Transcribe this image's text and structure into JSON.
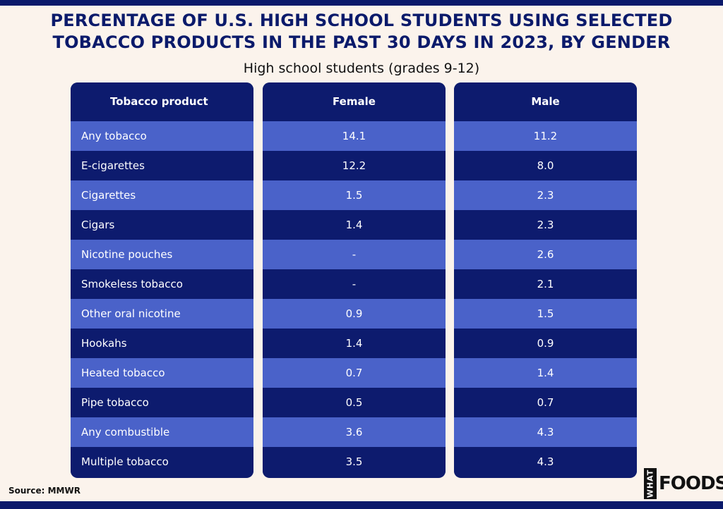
{
  "header": {
    "title_line1": "PERCENTAGE OF U.S. HIGH SCHOOL STUDENTS USING SELECTED",
    "title_line2": "TOBACCO PRODUCTS IN THE PAST 30 DAYS IN 2023, BY GENDER",
    "subtitle": "High school students (grades 9-12)"
  },
  "footer": {
    "source": "Source: MMWR",
    "logo_mark": "WHAT",
    "logo_text": "FOODS"
  },
  "colors": {
    "background": "#FBF3EC",
    "dark_navy": "#0D1B6E",
    "row_blue": "#4A62C9",
    "title": "#0B1A6B"
  },
  "chart_data": {
    "type": "table",
    "columns": [
      "Tobacco product",
      "Female",
      "Male"
    ],
    "rows": [
      {
        "product": "Any tobacco",
        "female": "14.1",
        "male": "11.2"
      },
      {
        "product": "E-cigarettes",
        "female": "12.2",
        "male": "8.0"
      },
      {
        "product": "Cigarettes",
        "female": "1.5",
        "male": "2.3"
      },
      {
        "product": "Cigars",
        "female": "1.4",
        "male": "2.3"
      },
      {
        "product": "Nicotine pouches",
        "female": "-",
        "male": "2.6"
      },
      {
        "product": "Smokeless tobacco",
        "female": "-",
        "male": "2.1"
      },
      {
        "product": "Other oral nicotine",
        "female": "0.9",
        "male": "1.5"
      },
      {
        "product": "Hookahs",
        "female": "1.4",
        "male": "0.9"
      },
      {
        "product": "Heated tobacco",
        "female": "0.7",
        "male": "1.4"
      },
      {
        "product": "Pipe tobacco",
        "female": "0.5",
        "male": "0.7"
      },
      {
        "product": "Any combustible",
        "female": "3.6",
        "male": "4.3"
      },
      {
        "product": "Multiple tobacco",
        "female": "3.5",
        "male": "4.3"
      }
    ]
  }
}
